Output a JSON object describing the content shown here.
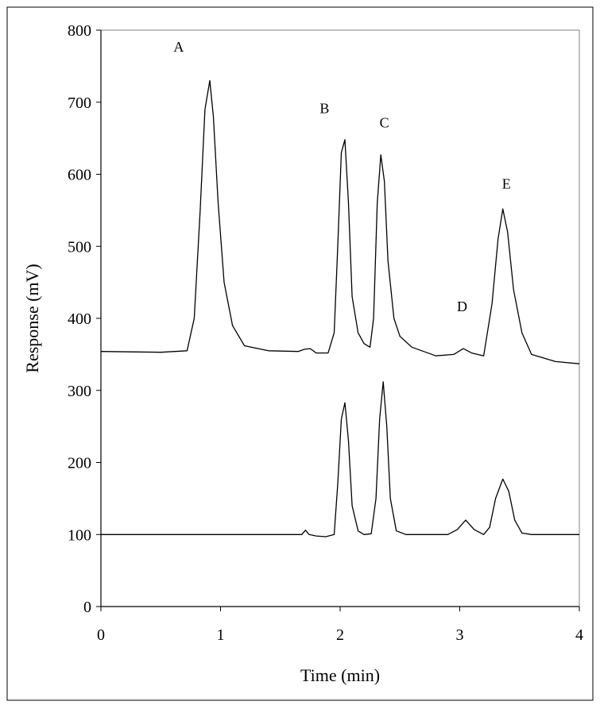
{
  "chart_data": {
    "type": "line",
    "title": "",
    "xlabel": "Time (min)",
    "ylabel": "Response (mV)",
    "xlim": [
      0,
      4
    ],
    "ylim": [
      0,
      800
    ],
    "xticks": [
      0,
      1,
      2,
      3,
      4
    ],
    "yticks": [
      0,
      100,
      200,
      300,
      400,
      500,
      600,
      700,
      800
    ],
    "grid": false,
    "legend": "none",
    "line_color": "#000000",
    "series": [
      {
        "x": [
          0,
          0.5,
          0.72,
          0.78,
          0.83,
          0.87,
          0.91,
          0.94,
          0.98,
          1.03,
          1.1,
          1.2,
          1.4,
          1.65,
          1.7,
          1.75,
          1.8,
          1.9,
          1.95,
          1.98,
          2.01,
          2.04,
          2.07,
          2.1,
          2.15,
          2.2,
          2.25,
          2.28,
          2.31,
          2.34,
          2.37,
          2.4,
          2.45,
          2.5,
          2.6,
          2.8,
          2.95,
          3.03,
          3.1,
          3.2,
          3.27,
          3.32,
          3.36,
          3.4,
          3.45,
          3.52,
          3.6,
          3.8,
          4.0
        ],
        "y": [
          354,
          353,
          355,
          400,
          550,
          690,
          730,
          680,
          560,
          450,
          390,
          362,
          355,
          354,
          357,
          358,
          352,
          352,
          380,
          500,
          630,
          648,
          560,
          430,
          380,
          365,
          360,
          400,
          560,
          627,
          590,
          480,
          400,
          375,
          360,
          348,
          350,
          358,
          352,
          348,
          420,
          510,
          552,
          520,
          440,
          380,
          350,
          340,
          337
        ]
      },
      {
        "x": [
          0,
          1.5,
          1.68,
          1.71,
          1.74,
          1.8,
          1.88,
          1.95,
          1.98,
          2.01,
          2.04,
          2.07,
          2.1,
          2.15,
          2.2,
          2.26,
          2.3,
          2.33,
          2.36,
          2.39,
          2.42,
          2.47,
          2.55,
          2.9,
          2.98,
          3.05,
          3.12,
          3.2,
          3.25,
          3.3,
          3.36,
          3.41,
          3.46,
          3.52,
          3.6,
          4.0
        ],
        "y": [
          100,
          100,
          100,
          106,
          100,
          98,
          97,
          100,
          170,
          260,
          283,
          230,
          140,
          105,
          100,
          101,
          150,
          260,
          312,
          250,
          150,
          105,
          100,
          100,
          107,
          120,
          107,
          100,
          110,
          150,
          177,
          160,
          120,
          102,
          100,
          100
        ]
      }
    ],
    "annotations": [
      {
        "text": "A",
        "x": 0.65,
        "y": 770
      },
      {
        "text": "B",
        "x": 1.87,
        "y": 685
      },
      {
        "text": "C",
        "x": 2.37,
        "y": 665
      },
      {
        "text": "D",
        "x": 3.02,
        "y": 410
      },
      {
        "text": "E",
        "x": 3.39,
        "y": 580
      }
    ]
  }
}
